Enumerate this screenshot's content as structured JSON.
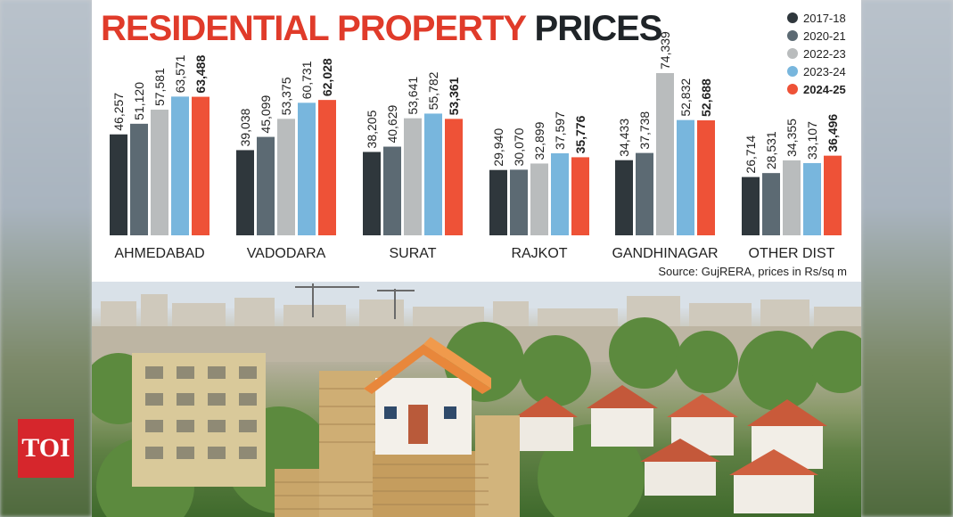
{
  "title": {
    "part1": "RESIDENTIAL PROPERTY",
    "part2": "PRICES"
  },
  "source": "Source: GujRERA, prices in Rs/sq m",
  "logo": "TOI",
  "colors": {
    "2017-18": "#2f373c",
    "2020-21": "#5c6a73",
    "2022-23": "#b9bcbd",
    "2023-24": "#78b6dd",
    "2024-25": "#ee5237"
  },
  "chart_data": {
    "type": "bar",
    "title": "RESIDENTIAL PROPERTY PRICES",
    "categories": [
      "AHMEDABAD",
      "VADODARA",
      "SURAT",
      "RAJKOT",
      "GANDHINAGAR",
      "OTHER DIST"
    ],
    "series": [
      {
        "name": "2017-18",
        "values": [
          46257,
          39038,
          38205,
          29940,
          34433,
          26714
        ],
        "labels": [
          "46,257",
          "39,038",
          "38,205",
          "29,940",
          "34,433",
          "26,714"
        ]
      },
      {
        "name": "2020-21",
        "values": [
          51120,
          45099,
          40629,
          30070,
          37738,
          28531
        ],
        "labels": [
          "51,120",
          "45,099",
          "40,629",
          "30,070",
          "37,738",
          "28,531"
        ]
      },
      {
        "name": "2022-23",
        "values": [
          57581,
          53375,
          53641,
          32899,
          74339,
          34355
        ],
        "labels": [
          "57,581",
          "53,375",
          "53,641",
          "32,899",
          "74,339",
          "34,355"
        ]
      },
      {
        "name": "2023-24",
        "values": [
          63571,
          60731,
          55782,
          37597,
          52832,
          33107
        ],
        "labels": [
          "63,571",
          "60,731",
          "55,782",
          "37,597",
          "52,832",
          "33,107"
        ]
      },
      {
        "name": "2024-25",
        "values": [
          63488,
          62028,
          53361,
          35776,
          52688,
          36496
        ],
        "labels": [
          "63,488",
          "62,028",
          "53,361",
          "35,776",
          "52,688",
          "36,496"
        ]
      }
    ],
    "legend": "top-right",
    "grid": false,
    "ylim": [
      0,
      74339
    ]
  }
}
